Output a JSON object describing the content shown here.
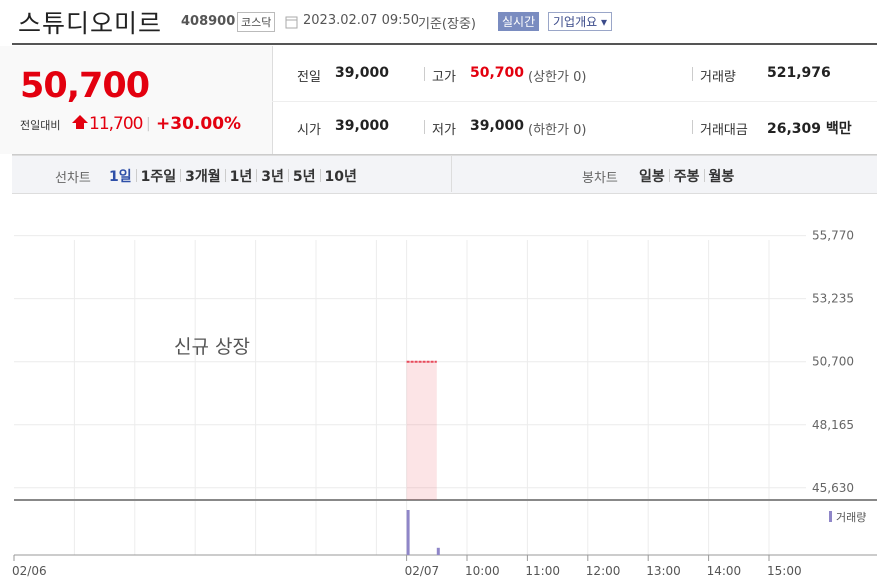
{
  "header": {
    "name": "스튜디오미르",
    "code": "408900",
    "market": "코스닥",
    "datetime": "2023.02.07 09:50",
    "basis": "기준(장중)",
    "realtime": "실시간",
    "company": "기업개요"
  },
  "quote": {
    "price": "50,700",
    "change_label": "전일대비",
    "change": "11,700",
    "rate": "+30.00%"
  },
  "stats": [
    {
      "label": "전일",
      "value": "39,000"
    },
    {
      "label": "고가",
      "value": "50,700",
      "note": "(상한가 0)"
    },
    {
      "label": "거래량",
      "value": "521,976"
    },
    {
      "label": "시가",
      "value": "39,000"
    },
    {
      "label": "저가",
      "value": "39,000",
      "note": "(하한가 0)"
    },
    {
      "label": "거래대금",
      "value": "26,309 백만"
    }
  ],
  "tabs": {
    "line_label": "선차트",
    "line_periods": [
      "1일",
      "1주일",
      "3개월",
      "1년",
      "3년",
      "5년",
      "10년"
    ],
    "candle_label": "봉차트",
    "candle_periods": [
      "일봉",
      "주봉",
      "월봉"
    ]
  },
  "chart_data": {
    "type": "area",
    "annotation": "신규 상장",
    "categories": [
      "02/06",
      null,
      null,
      null,
      null,
      null,
      null,
      null,
      null,
      null,
      null,
      null,
      null,
      "02/07",
      null,
      "10:00",
      null,
      "11:00",
      null,
      "12:00",
      null,
      "13:00",
      null,
      "14:00",
      null,
      "15:00",
      null
    ],
    "series": [
      {
        "color": "#e8495a",
        "values": [
          null,
          null,
          null,
          null,
          null,
          null,
          null,
          null,
          null,
          null,
          null,
          null,
          null,
          50700,
          50700,
          null,
          null,
          null,
          null,
          null,
          null,
          null,
          null,
          null,
          null,
          null,
          null
        ]
      }
    ],
    "volume": {
      "name": "거래량",
      "color": "#8f86c8",
      "values": [
        null,
        null,
        null,
        null,
        null,
        null,
        null,
        null,
        null,
        null,
        null,
        null,
        null,
        450000,
        71976,
        null,
        null,
        null,
        null,
        null,
        null,
        null,
        null,
        null,
        null,
        null,
        null
      ]
    },
    "ylim": [
      45140,
      57000
    ],
    "yticks": [
      {
        "value": 45630,
        "label": "45,630"
      },
      {
        "value": 48165,
        "label": "48,165"
      },
      {
        "value": 50700,
        "label": "50,700"
      },
      {
        "value": 53235,
        "label": "53,235"
      },
      {
        "value": 55770,
        "label": "55,770"
      }
    ],
    "grid": true
  }
}
